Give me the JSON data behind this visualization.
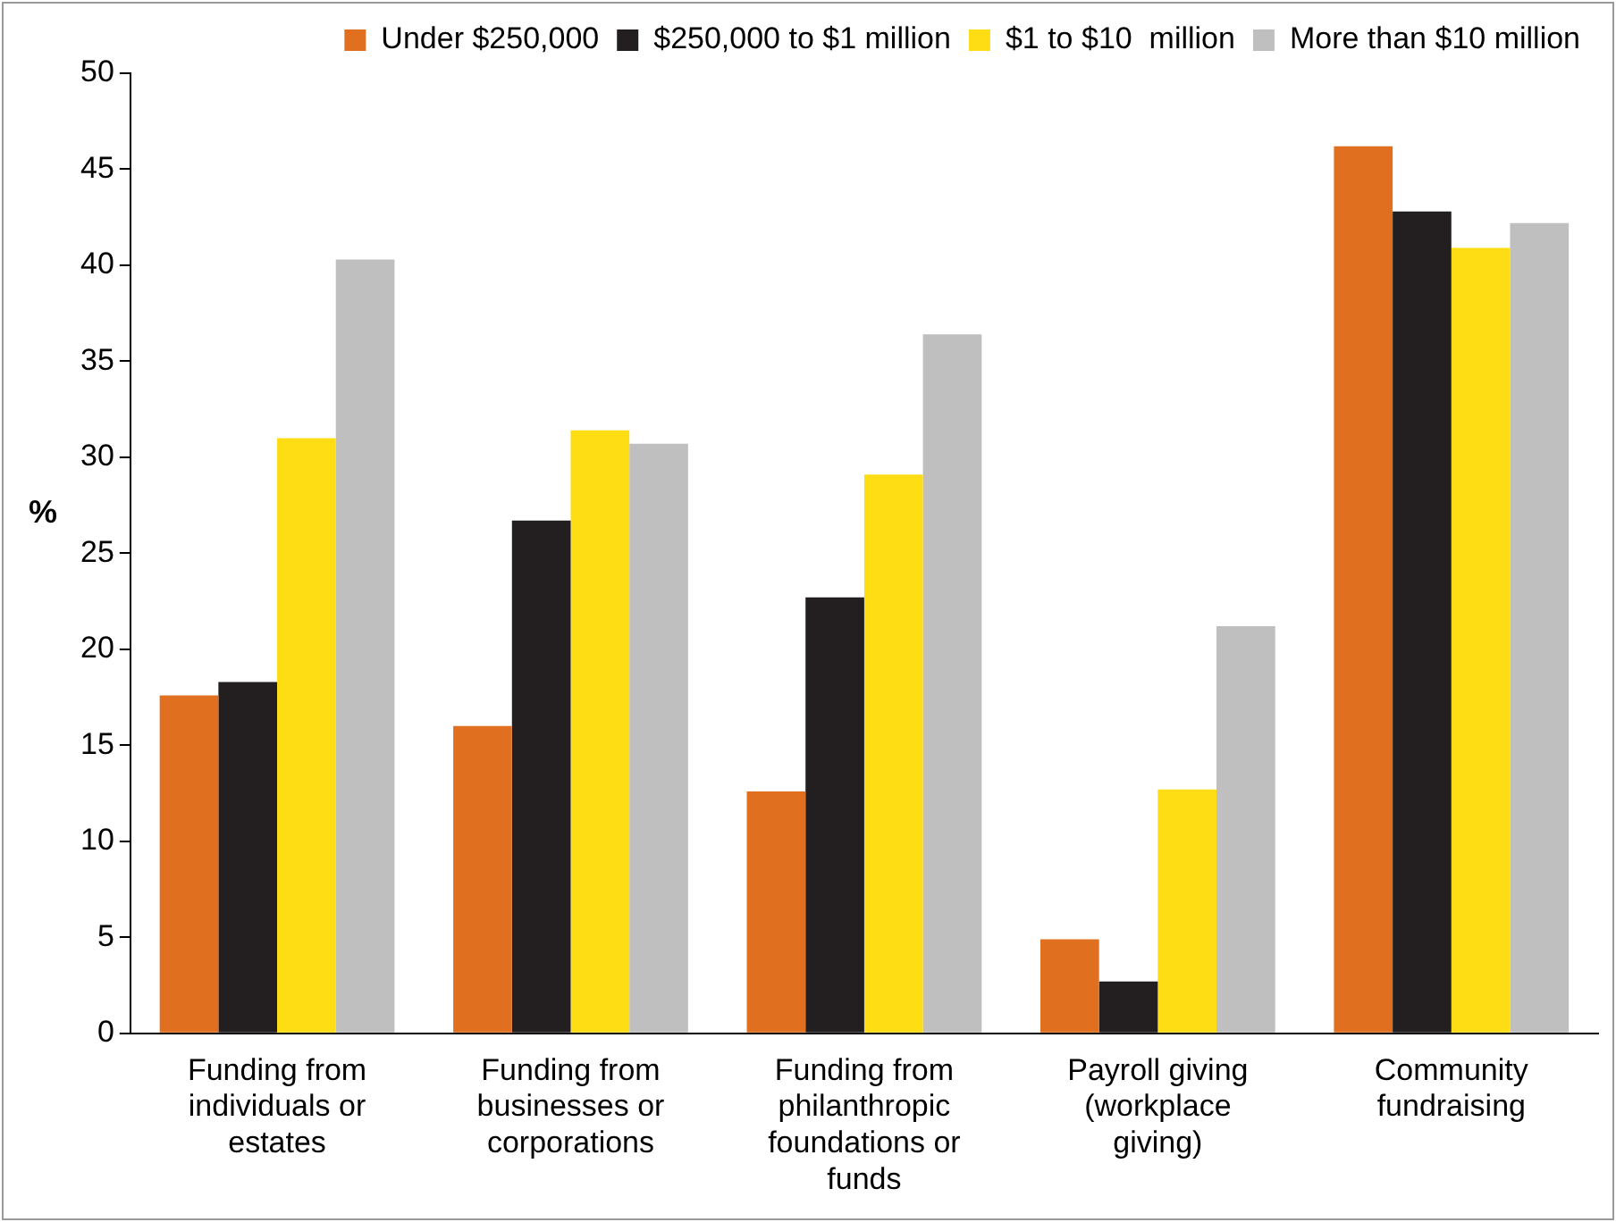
{
  "chart_data": {
    "type": "bar",
    "ylabel": "%",
    "categories": [
      "Funding from individuals or estates",
      "Funding from businesses or corporations",
      "Funding from philanthropic foundations or funds",
      "Payroll giving (workplace giving)",
      "Community fundraising"
    ],
    "series": [
      {
        "name": "Under $250,000",
        "color": "#e07020",
        "values": [
          17.6,
          16.0,
          12.6,
          4.9,
          46.2
        ]
      },
      {
        "name": "$250,000 to $1 million",
        "color": "#231f20",
        "values": [
          18.3,
          26.7,
          22.7,
          2.7,
          42.8
        ]
      },
      {
        "name": "$1 to $10  million",
        "color": "#ffdd15",
        "values": [
          31.0,
          31.4,
          29.1,
          12.7,
          40.9
        ]
      },
      {
        "name": "More than $10 million",
        "color": "#bfbfbf",
        "values": [
          40.3,
          30.7,
          36.4,
          21.2,
          42.2
        ]
      }
    ],
    "ylim": [
      0,
      50
    ],
    "yticks": [
      0,
      5,
      10,
      15,
      20,
      25,
      30,
      35,
      40,
      45,
      50
    ],
    "grid": false,
    "legend": "top"
  }
}
